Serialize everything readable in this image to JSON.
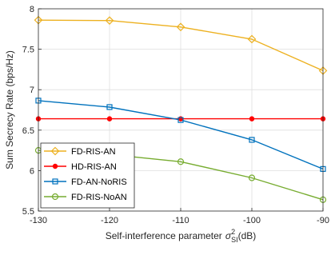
{
  "chart_data": {
    "type": "line",
    "title": "",
    "xlabel": "Self-interference parameter",
    "xlabel_symbol": "σ",
    "xlabel_superscript": "2",
    "xlabel_subscript": "SI",
    "xlabel_unit": "(dB)",
    "ylabel": "Sum Secrecy Rate (bps/Hz)",
    "x": [
      -130,
      -120,
      -110,
      -100,
      -90
    ],
    "xlim": [
      -130,
      -90
    ],
    "ylim": [
      5.5,
      8
    ],
    "xticks": [
      -130,
      -120,
      -110,
      -100,
      -90
    ],
    "yticks": [
      5.5,
      6,
      6.5,
      7,
      7.5,
      8
    ],
    "grid": true,
    "legend_position": "bottom-left",
    "series": [
      {
        "name": "FD-RIS-AN",
        "values": [
          7.86,
          7.855,
          7.775,
          7.625,
          7.235
        ],
        "color": "#EDB120",
        "marker": "diamond"
      },
      {
        "name": "HD-RIS-AN",
        "values": [
          6.64,
          6.64,
          6.64,
          6.64,
          6.64
        ],
        "color": "#FF0000",
        "marker": "dot"
      },
      {
        "name": "FD-AN-NoRIS",
        "values": [
          6.865,
          6.785,
          6.625,
          6.38,
          6.02
        ],
        "color": "#0072BD",
        "marker": "square"
      },
      {
        "name": "FD-RIS-NoAN",
        "values": [
          6.25,
          6.2,
          6.11,
          5.91,
          5.64
        ],
        "color": "#77AC30",
        "marker": "circle"
      }
    ]
  }
}
